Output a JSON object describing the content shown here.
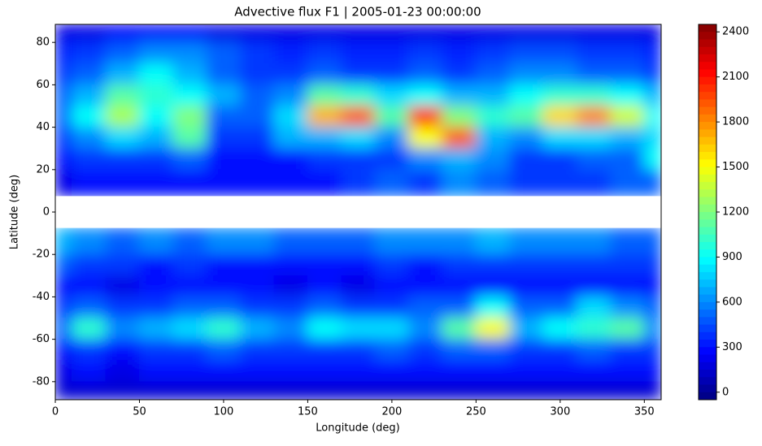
{
  "chart_data": {
    "type": "contour",
    "title": "Advective flux F1 | 2005-01-23 00:00:00",
    "x_label": "Longitude (deg)",
    "y_label": "Latitude (deg)",
    "x": [
      0,
      20,
      40,
      60,
      80,
      100,
      120,
      140,
      160,
      180,
      200,
      220,
      240,
      260,
      280,
      300,
      320,
      340,
      360
    ],
    "y": [
      85,
      75,
      65,
      55,
      45,
      35,
      25,
      15,
      0,
      -15,
      -25,
      -35,
      -45,
      -55,
      -65,
      -75,
      -85
    ],
    "z": [
      [
        200,
        200,
        250,
        250,
        250,
        200,
        200,
        200,
        200,
        200,
        200,
        200,
        200,
        200,
        200,
        200,
        200,
        200,
        200
      ],
      [
        350,
        400,
        500,
        600,
        600,
        500,
        400,
        350,
        400,
        350,
        350,
        400,
        350,
        400,
        450,
        450,
        400,
        400,
        350
      ],
      [
        400,
        500,
        700,
        900,
        700,
        500,
        400,
        400,
        500,
        400,
        400,
        500,
        400,
        500,
        600,
        600,
        500,
        500,
        400
      ],
      [
        500,
        700,
        1100,
        1000,
        900,
        700,
        500,
        600,
        1100,
        1000,
        800,
        900,
        700,
        700,
        900,
        1000,
        1000,
        900,
        700
      ],
      [
        500,
        900,
        1300,
        900,
        1200,
        500,
        500,
        800,
        1700,
        1900,
        1100,
        2000,
        1200,
        1000,
        1100,
        1600,
        1800,
        1400,
        900
      ],
      [
        400,
        600,
        800,
        700,
        1100,
        400,
        400,
        700,
        700,
        800,
        600,
        1500,
        1900,
        700,
        600,
        800,
        800,
        700,
        800
      ],
      [
        300,
        400,
        400,
        400,
        500,
        300,
        300,
        300,
        400,
        400,
        400,
        600,
        700,
        600,
        400,
        400,
        500,
        500,
        900
      ],
      [
        200,
        300,
        300,
        300,
        300,
        300,
        300,
        300,
        300,
        400,
        500,
        400,
        600,
        500,
        400,
        400,
        400,
        500,
        500
      ],
      [
        null,
        null,
        null,
        null,
        null,
        null,
        null,
        null,
        null,
        null,
        null,
        null,
        null,
        null,
        null,
        null,
        null,
        null,
        null
      ],
      [
        700,
        600,
        500,
        600,
        500,
        600,
        600,
        500,
        500,
        500,
        600,
        600,
        600,
        700,
        600,
        600,
        600,
        500,
        500
      ],
      [
        500,
        400,
        400,
        300,
        400,
        300,
        300,
        300,
        300,
        300,
        400,
        300,
        400,
        400,
        400,
        400,
        400,
        400,
        400
      ],
      [
        300,
        300,
        200,
        300,
        300,
        300,
        300,
        200,
        300,
        200,
        300,
        300,
        300,
        300,
        300,
        300,
        300,
        300,
        300
      ],
      [
        400,
        500,
        400,
        400,
        500,
        500,
        400,
        400,
        500,
        400,
        400,
        500,
        500,
        900,
        500,
        500,
        800,
        600,
        500
      ],
      [
        500,
        1000,
        600,
        700,
        800,
        1000,
        700,
        600,
        900,
        800,
        800,
        600,
        1100,
        1500,
        700,
        900,
        1000,
        1100,
        600
      ],
      [
        300,
        400,
        300,
        400,
        400,
        500,
        400,
        400,
        400,
        400,
        500,
        400,
        500,
        500,
        400,
        400,
        500,
        400,
        400
      ],
      [
        200,
        300,
        200,
        300,
        300,
        300,
        300,
        300,
        300,
        300,
        300,
        300,
        300,
        300,
        300,
        300,
        300,
        300,
        300
      ],
      [
        150,
        150,
        150,
        150,
        150,
        150,
        150,
        150,
        150,
        150,
        150,
        150,
        150,
        150,
        150,
        150,
        150,
        150,
        150
      ]
    ],
    "xlim": [
      0,
      360
    ],
    "ylim": [
      -88.5,
      88.5
    ],
    "xticks": [
      0,
      50,
      100,
      150,
      200,
      250,
      300,
      350
    ],
    "yticks": [
      -80,
      -60,
      -40,
      -20,
      0,
      20,
      40,
      60,
      80
    ],
    "colormap": "jet",
    "clim": [
      -50,
      2450
    ],
    "cticks": [
      0,
      300,
      600,
      900,
      1200,
      1500,
      1800,
      2100,
      2400
    ]
  }
}
